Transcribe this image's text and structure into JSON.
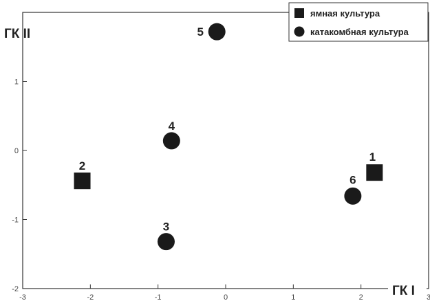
{
  "chart_data": {
    "type": "scatter",
    "xlabel": "ГК I",
    "ylabel": "ГК II",
    "xlim": [
      -3,
      3
    ],
    "ylim": [
      -2,
      2
    ],
    "x_ticks": [
      -3,
      -2,
      -1,
      0,
      1,
      2,
      3
    ],
    "y_ticks": [
      -2,
      -1,
      0,
      1
    ],
    "legend_position": "top-right",
    "grid": false,
    "series": [
      {
        "name": "ямная культура",
        "marker": "square",
        "color": "#1a1a1a",
        "points": [
          {
            "label": "1",
            "x": 2.2,
            "y": -0.32
          },
          {
            "label": "2",
            "x": -2.12,
            "y": -0.44
          }
        ]
      },
      {
        "name": "катакомбная культура",
        "marker": "circle",
        "color": "#1a1a1a",
        "points": [
          {
            "label": "3",
            "x": -0.88,
            "y": -1.32
          },
          {
            "label": "4",
            "x": -0.8,
            "y": 0.14
          },
          {
            "label": "5",
            "x": -0.13,
            "y": 1.72
          },
          {
            "label": "6",
            "x": 1.88,
            "y": -0.66
          }
        ]
      }
    ]
  }
}
